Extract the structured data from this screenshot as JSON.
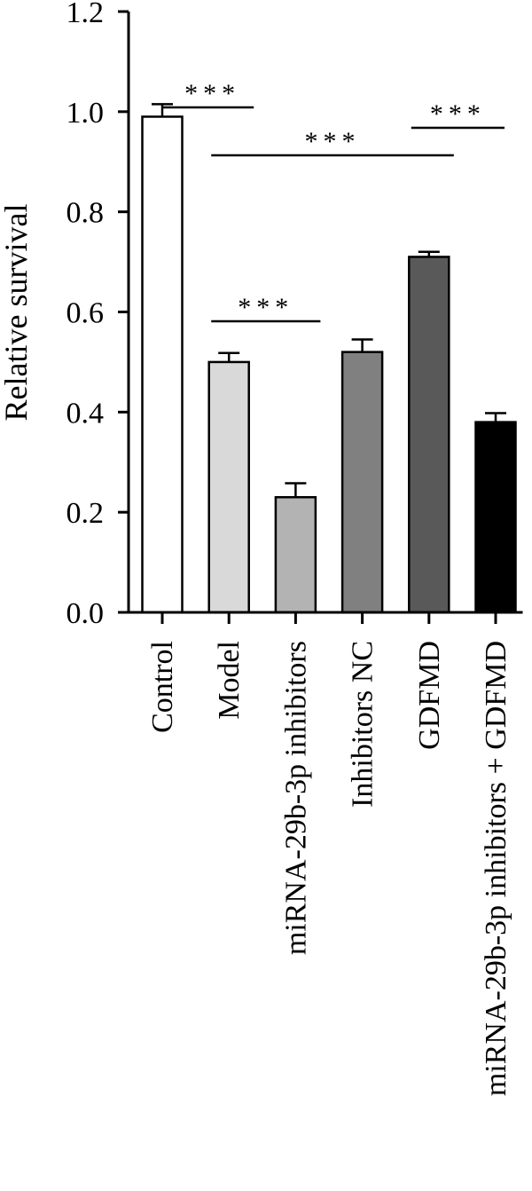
{
  "chart_data": {
    "type": "bar",
    "title": "",
    "xlabel": "",
    "ylabel": "Relative survival",
    "ylim": [
      0,
      1.2
    ],
    "yticks": [
      "0.0",
      "0.2",
      "0.4",
      "0.6",
      "0.8",
      "1.0",
      "1.2"
    ],
    "categories": [
      "Control",
      "Model",
      "miRNA-29b-3p inhibitors",
      "Inhibitors NC",
      "GDFMD",
      "miRNA-29b-3p inhibitors + GDFMD"
    ],
    "values": [
      0.99,
      0.5,
      0.23,
      0.52,
      0.71,
      0.38
    ],
    "errors": [
      0.025,
      0.018,
      0.028,
      0.025,
      0.01,
      0.018
    ],
    "bar_colors": [
      "#ffffff",
      "#d9d9d9",
      "#b3b3b3",
      "#808080",
      "#595959",
      "#000000"
    ],
    "significance": [
      {
        "from": 0,
        "to": 1,
        "label": "***"
      },
      {
        "from": 1,
        "to": 4,
        "label": "***"
      },
      {
        "from": 1,
        "to": 2,
        "label": "***"
      },
      {
        "from": 4,
        "to": 5,
        "label": "***"
      }
    ],
    "grid": false,
    "legend": "none"
  }
}
